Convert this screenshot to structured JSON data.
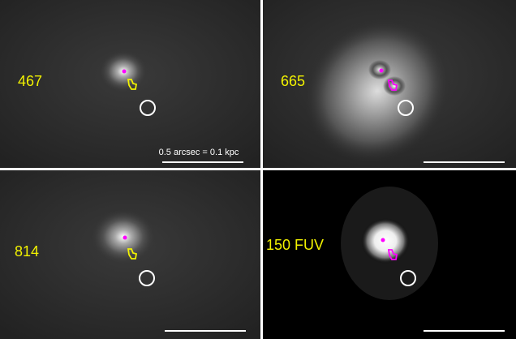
{
  "panels": [
    {
      "label": "467"
    },
    {
      "label": "665"
    },
    {
      "label": "814"
    },
    {
      "label": "150 FUV"
    }
  ],
  "scale_bar_label": "0.5 arcsec = 0.1 kpc"
}
